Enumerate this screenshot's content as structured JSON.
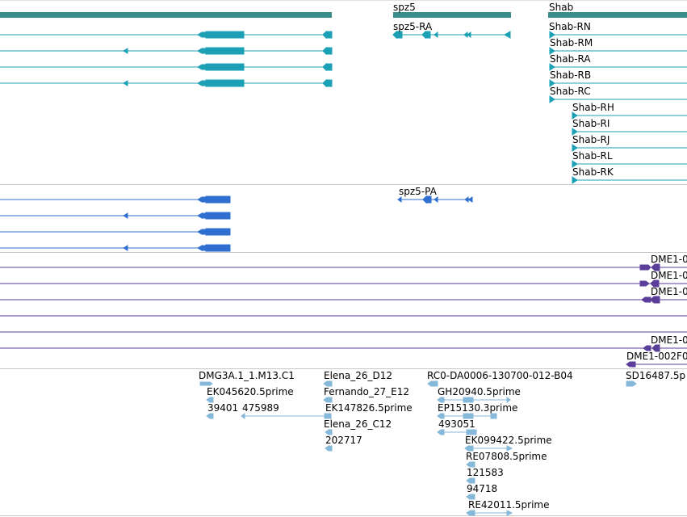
{
  "colors": {
    "gene": "#3a8c8c",
    "transcript": "#1ba0b5",
    "protein": "#2f6fcf",
    "alignment": "#5a3e99",
    "est": "#86b8da",
    "divider": "#c8c8c8"
  },
  "icons": [
    "arrow-left-icon",
    "arrow-right-icon"
  ],
  "genes": [
    {
      "id": "gene-left",
      "label": ""
    },
    {
      "id": "gene-spz5",
      "label": "spz5"
    },
    {
      "id": "gene-shab",
      "label": "Shab"
    }
  ],
  "transcripts": {
    "spz5": [
      {
        "label": "spz5-RA"
      }
    ],
    "shab": [
      {
        "label": "Shab-RN"
      },
      {
        "label": "Shab-RM"
      },
      {
        "label": "Shab-RA"
      },
      {
        "label": "Shab-RB"
      },
      {
        "label": "Shab-RC"
      },
      {
        "label": "Shab-RH"
      },
      {
        "label": "Shab-RI"
      },
      {
        "label": "Shab-RJ"
      },
      {
        "label": "Shab-RL"
      },
      {
        "label": "Shab-RK"
      }
    ]
  },
  "proteins": [
    {
      "label": "spz5-PA"
    }
  ],
  "alignments": [
    {
      "label": "DME1-0"
    },
    {
      "label": "DME1-0"
    },
    {
      "label": "DME1-0"
    },
    {
      "label": ""
    },
    {
      "label": ""
    },
    {
      "label": "DME1-0"
    },
    {
      "label": "DME1-002F0"
    }
  ],
  "ests": [
    {
      "label": "DMG3A.1_1.M13.C1"
    },
    {
      "label": "EK045620.5prime"
    },
    {
      "label": "39401"
    },
    {
      "label": "475989"
    },
    {
      "label": "Elena_26_D12"
    },
    {
      "label": "Fernando_27_E12"
    },
    {
      "label": "EK147826.5prime"
    },
    {
      "label": "Elena_26_C12"
    },
    {
      "label": "202717"
    },
    {
      "label": "RC0-DA0006-130700-012-B04"
    },
    {
      "label": "GH20940.5prime"
    },
    {
      "label": "EP15130.3prime"
    },
    {
      "label": "493051"
    },
    {
      "label": "EK099422.5prime"
    },
    {
      "label": "RE07808.5prime"
    },
    {
      "label": "121583"
    },
    {
      "label": "94718"
    },
    {
      "label": "RE42011.5prime"
    },
    {
      "label": "SD16487.5p"
    }
  ]
}
